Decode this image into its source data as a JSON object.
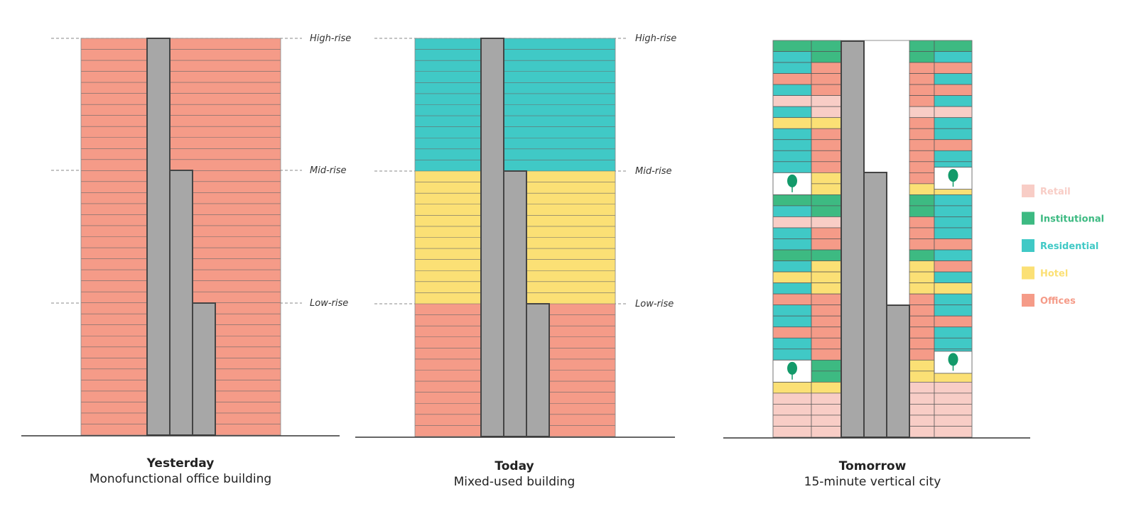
{
  "colors": {
    "Retail": "#f8cdc6",
    "Institutional": "#3dba82",
    "Residential": "#40c9c6",
    "Hotel": "#fbe075",
    "Offices": "#f59b88",
    "core": "#a7a7a7",
    "tree": "#139a6a",
    "outline": "#555555"
  },
  "level_labels": [
    "High-rise",
    "Mid-rise",
    "Low-rise"
  ],
  "panels": [
    {
      "title": "Yesterday",
      "subtitle": "Monofunctional office building",
      "zones": [
        "Offices",
        "Offices",
        "Offices"
      ]
    },
    {
      "title": "Today",
      "subtitle": "Mixed-used building",
      "zones": [
        "Residential",
        "Hotel",
        "Offices"
      ]
    },
    {
      "title": "Tomorrow",
      "subtitle": "15-minute vertical city"
    }
  ],
  "legend": [
    "Retail",
    "Institutional",
    "Residential",
    "Hotel",
    "Offices"
  ]
}
